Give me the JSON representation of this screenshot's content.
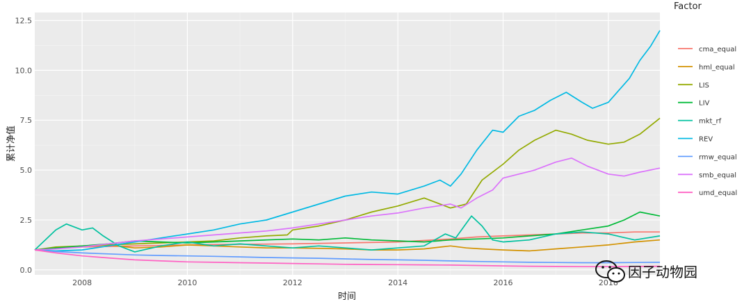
{
  "chart_data": {
    "type": "line",
    "xlabel": "时间",
    "ylabel": "累计净值",
    "xlim": [
      2007.1,
      2018.98
    ],
    "ylim": [
      -0.25,
      12.9
    ],
    "x_ticks": [
      2008,
      2010,
      2012,
      2014,
      2016,
      2018
    ],
    "x_tick_labels": [
      "2008",
      "2010",
      "2012",
      "2014",
      "2016",
      "2018"
    ],
    "y_ticks": [
      0,
      2.5,
      5,
      7.5,
      10,
      12.5
    ],
    "y_tick_labels": [
      "0.0",
      "2.5",
      "5.0",
      "7.5",
      "10.0",
      "12.5"
    ],
    "grid": true,
    "legend": {
      "title": "Factor",
      "position": "right"
    },
    "series": [
      {
        "name": "cma_equal",
        "color": "#F8766D",
        "x": [
          2007.1,
          2007.5,
          2008,
          2009,
          2010,
          2011,
          2012,
          2013,
          2014,
          2015,
          2015.5,
          2016,
          2016.5,
          2017,
          2017.5,
          2018,
          2018.5,
          2018.98
        ],
        "y": [
          1.0,
          1.08,
          1.15,
          1.2,
          1.25,
          1.28,
          1.3,
          1.35,
          1.4,
          1.55,
          1.65,
          1.7,
          1.75,
          1.8,
          1.85,
          1.85,
          1.9,
          1.9
        ]
      },
      {
        "name": "hml_equal",
        "color": "#D39200",
        "x": [
          2007.1,
          2007.5,
          2008,
          2008.5,
          2009,
          2009.5,
          2010,
          2010.5,
          2011,
          2011.5,
          2012,
          2012.5,
          2013,
          2013.5,
          2014,
          2014.5,
          2015,
          2015.3,
          2015.6,
          2016,
          2016.5,
          2017,
          2017.5,
          2018,
          2018.5,
          2018.98
        ],
        "y": [
          1.0,
          1.1,
          1.2,
          1.25,
          1.1,
          1.15,
          1.25,
          1.2,
          1.15,
          1.1,
          1.1,
          1.08,
          1.05,
          1.0,
          1.0,
          1.05,
          1.2,
          1.1,
          1.05,
          1.0,
          0.95,
          1.05,
          1.15,
          1.25,
          1.4,
          1.5
        ]
      },
      {
        "name": "LIS",
        "color": "#93AA00",
        "x": [
          2007.1,
          2007.5,
          2008,
          2008.5,
          2009,
          2009.5,
          2010,
          2010.5,
          2011,
          2011.5,
          2011.9,
          2012,
          2012.5,
          2013,
          2013.5,
          2014,
          2014.5,
          2015,
          2015.3,
          2015.6,
          2016,
          2016.3,
          2016.6,
          2017,
          2017.3,
          2017.6,
          2018,
          2018.3,
          2018.6,
          2018.98
        ],
        "y": [
          1.0,
          1.15,
          1.2,
          1.25,
          1.3,
          1.35,
          1.4,
          1.45,
          1.6,
          1.7,
          1.75,
          2.0,
          2.2,
          2.5,
          2.9,
          3.2,
          3.6,
          3.1,
          3.3,
          4.5,
          5.3,
          6.0,
          6.5,
          7.0,
          6.8,
          6.5,
          6.3,
          6.4,
          6.8,
          7.6
        ]
      },
      {
        "name": "LIV",
        "color": "#00BA38",
        "x": [
          2007.1,
          2007.5,
          2008,
          2008.5,
          2009,
          2009.5,
          2010,
          2010.5,
          2011,
          2011.5,
          2012,
          2012.5,
          2013,
          2013.5,
          2014,
          2014.5,
          2015,
          2015.5,
          2016,
          2016.5,
          2017,
          2017.5,
          2018,
          2018.3,
          2018.6,
          2018.98
        ],
        "y": [
          1.0,
          1.1,
          1.2,
          1.3,
          1.45,
          1.4,
          1.35,
          1.4,
          1.45,
          1.5,
          1.55,
          1.5,
          1.6,
          1.5,
          1.45,
          1.4,
          1.5,
          1.55,
          1.6,
          1.7,
          1.8,
          2.0,
          2.2,
          2.5,
          2.9,
          2.7
        ]
      },
      {
        "name": "mkt_rf",
        "color": "#00C19F",
        "x": [
          2007.1,
          2007.3,
          2007.5,
          2007.7,
          2007.8,
          2008,
          2008.2,
          2008.4,
          2008.7,
          2009,
          2009.5,
          2010,
          2010.5,
          2011,
          2011.5,
          2012,
          2012.5,
          2013,
          2013.5,
          2014,
          2014.5,
          2014.9,
          2015.1,
          2015.4,
          2015.6,
          2015.8,
          2016,
          2016.5,
          2017,
          2017.5,
          2018,
          2018.5,
          2018.98
        ],
        "y": [
          1.0,
          1.5,
          2.0,
          2.3,
          2.2,
          2.0,
          2.1,
          1.7,
          1.2,
          0.9,
          1.2,
          1.4,
          1.2,
          1.3,
          1.2,
          1.1,
          1.2,
          1.1,
          1.0,
          1.1,
          1.2,
          1.8,
          1.6,
          2.7,
          2.2,
          1.5,
          1.4,
          1.5,
          1.8,
          1.9,
          1.8,
          1.5,
          1.7
        ]
      },
      {
        "name": "REV",
        "color": "#00B9E3",
        "x": [
          2007.1,
          2007.5,
          2008,
          2008.5,
          2009,
          2009.5,
          2010,
          2010.5,
          2011,
          2011.5,
          2012,
          2012.5,
          2013,
          2013.5,
          2014,
          2014.5,
          2014.8,
          2015,
          2015.2,
          2015.5,
          2015.8,
          2016,
          2016.3,
          2016.6,
          2016.9,
          2017.2,
          2017.5,
          2017.7,
          2018,
          2018.2,
          2018.4,
          2018.6,
          2018.8,
          2018.98
        ],
        "y": [
          1.0,
          0.95,
          1.0,
          1.2,
          1.4,
          1.6,
          1.8,
          2.0,
          2.3,
          2.5,
          2.9,
          3.3,
          3.7,
          3.9,
          3.8,
          4.2,
          4.5,
          4.2,
          4.8,
          6.0,
          7.0,
          6.9,
          7.7,
          8.0,
          8.5,
          8.9,
          8.4,
          8.1,
          8.4,
          9.0,
          9.6,
          10.5,
          11.2,
          12.0
        ]
      },
      {
        "name": "rmw_equal",
        "color": "#619CFF",
        "x": [
          2007.1,
          2007.5,
          2008,
          2008.5,
          2009,
          2009.5,
          2010,
          2010.5,
          2011,
          2011.5,
          2012,
          2012.5,
          2013,
          2013.5,
          2014,
          2014.5,
          2015,
          2015.5,
          2016,
          2016.5,
          2017,
          2017.5,
          2018,
          2018.5,
          2018.98
        ],
        "y": [
          1.0,
          0.92,
          0.85,
          0.8,
          0.75,
          0.72,
          0.7,
          0.68,
          0.65,
          0.62,
          0.6,
          0.58,
          0.55,
          0.52,
          0.5,
          0.48,
          0.45,
          0.42,
          0.4,
          0.38,
          0.37,
          0.36,
          0.36,
          0.37,
          0.38
        ]
      },
      {
        "name": "smb_equal",
        "color": "#DB72FB",
        "x": [
          2007.1,
          2007.5,
          2008,
          2008.5,
          2009,
          2009.5,
          2010,
          2010.5,
          2011,
          2011.5,
          2012,
          2012.5,
          2013,
          2013.5,
          2014,
          2014.5,
          2015,
          2015.2,
          2015.5,
          2015.8,
          2016,
          2016.3,
          2016.6,
          2017,
          2017.3,
          2017.6,
          2018,
          2018.3,
          2018.6,
          2018.98
        ],
        "y": [
          1.0,
          1.05,
          1.15,
          1.3,
          1.45,
          1.55,
          1.65,
          1.75,
          1.85,
          1.95,
          2.1,
          2.3,
          2.5,
          2.7,
          2.85,
          3.1,
          3.3,
          3.1,
          3.6,
          4.0,
          4.6,
          4.8,
          5.0,
          5.4,
          5.6,
          5.2,
          4.8,
          4.7,
          4.9,
          5.1
        ]
      },
      {
        "name": "umd_equal",
        "color": "#FF61C3",
        "x": [
          2007.1,
          2007.5,
          2008,
          2008.5,
          2009,
          2009.5,
          2010,
          2010.5,
          2011,
          2011.5,
          2012,
          2012.5,
          2013,
          2013.5,
          2014,
          2014.5,
          2015,
          2015.5,
          2016,
          2016.5,
          2017,
          2017.5,
          2018,
          2018.5,
          2018.98
        ],
        "y": [
          1.0,
          0.85,
          0.7,
          0.6,
          0.5,
          0.45,
          0.4,
          0.38,
          0.36,
          0.34,
          0.32,
          0.3,
          0.28,
          0.27,
          0.26,
          0.25,
          0.24,
          0.22,
          0.2,
          0.18,
          0.17,
          0.16,
          0.16,
          0.17,
          0.18
        ]
      }
    ]
  },
  "watermark": {
    "text": "因子动物园",
    "icon": "wechat-logo-icon"
  }
}
